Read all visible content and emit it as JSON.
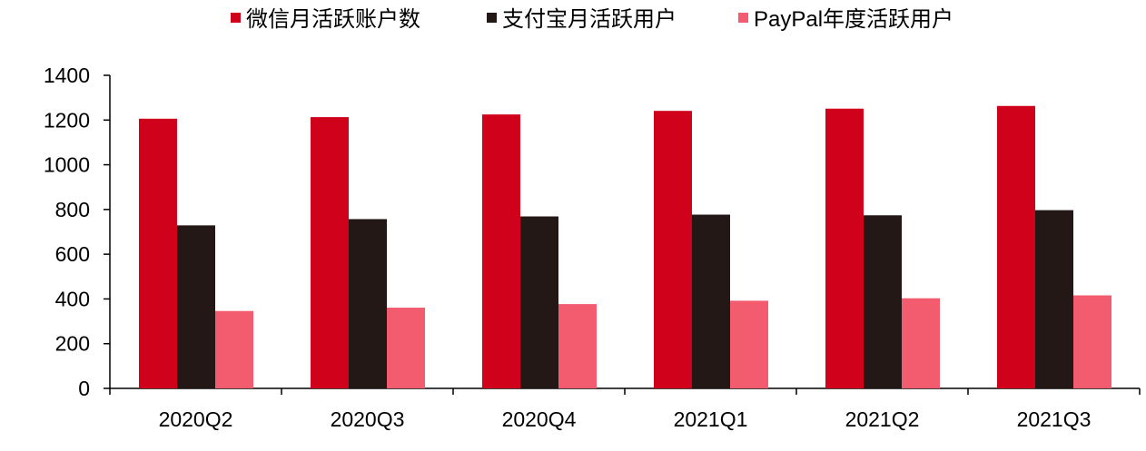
{
  "chart_data": {
    "type": "bar",
    "categories": [
      "2020Q2",
      "2020Q3",
      "2020Q4",
      "2021Q1",
      "2021Q2",
      "2021Q3"
    ],
    "series": [
      {
        "name": "微信月活跃账户数",
        "color": "#d0021b",
        "values": [
          1206,
          1213,
          1225,
          1241,
          1251,
          1263
        ]
      },
      {
        "name": "支付宝月活跃用户",
        "color": "#231815",
        "values": [
          729,
          757,
          769,
          777,
          774,
          797
        ]
      },
      {
        "name": "PayPal年度活跃用户",
        "color": "#f25c6e",
        "values": [
          346,
          361,
          377,
          392,
          403,
          416
        ]
      }
    ],
    "ylim": [
      0,
      1400
    ],
    "yticks": [
      "0",
      "200",
      "400",
      "600",
      "800",
      "1000",
      "1200",
      "1400"
    ],
    "grid": false,
    "legend_position": "top"
  }
}
